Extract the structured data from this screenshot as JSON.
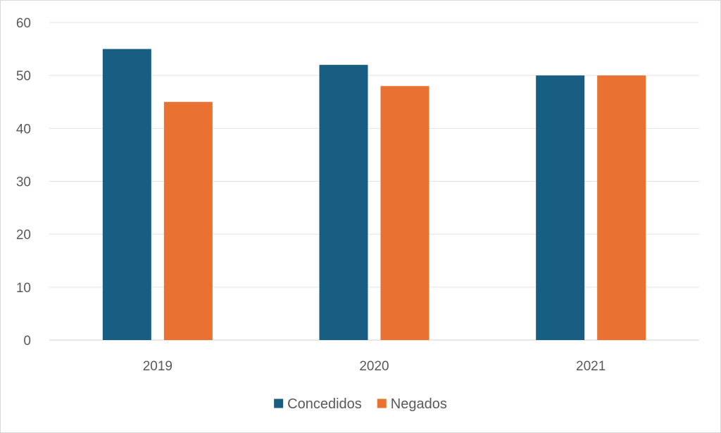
{
  "chart_data": {
    "type": "bar",
    "categories": [
      "2019",
      "2020",
      "2021"
    ],
    "series": [
      {
        "name": "Concedidos",
        "values": [
          55,
          52,
          50
        ],
        "color": "#175E82"
      },
      {
        "name": "Negados",
        "values": [
          45,
          48,
          50
        ],
        "color": "#E97132"
      }
    ],
    "ylim": [
      0,
      60
    ],
    "yticks": [
      0,
      10,
      20,
      30,
      40,
      50,
      60
    ],
    "grid": true,
    "legend": "bottom",
    "title": "",
    "xlabel": "",
    "ylabel": ""
  }
}
